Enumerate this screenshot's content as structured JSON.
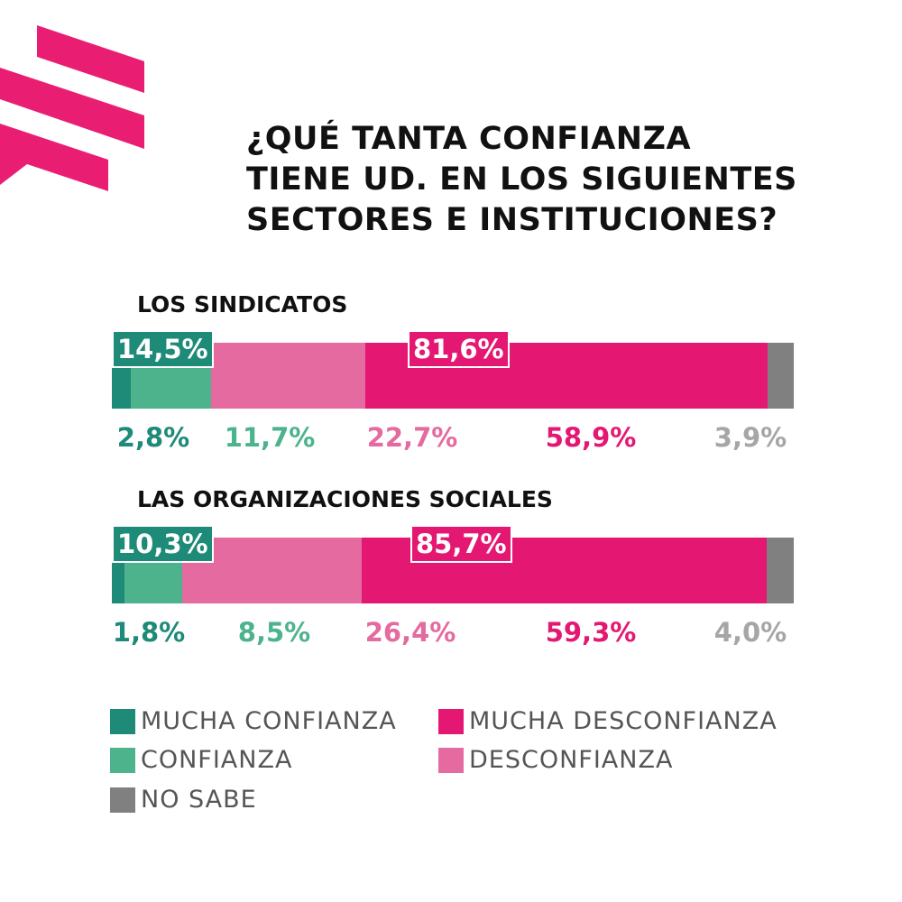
{
  "title_lines": [
    "¿QUÉ TANTA CONFIANZA",
    "TIENE UD. EN LOS SIGUIENTES",
    "SECTORES E INSTITUCIONES?"
  ],
  "colors": {
    "mucha_confianza": "#1e8a78",
    "confianza": "#4db38c",
    "desconfianza": "#e46aa0",
    "mucha_desconfianza": "#e41872",
    "no_sabe": "#808080",
    "brand": "#e91e72"
  },
  "chart_data": {
    "type": "bar",
    "orientation": "horizontal",
    "stacked": true,
    "title": "¿QUÉ TANTA CONFIANZA TIENE UD. EN LOS SIGUIENTES SECTORES E INSTITUCIONES?",
    "categories": [
      "LOS SINDICATOS",
      "LAS ORGANIZACIONES SOCIALES"
    ],
    "series": [
      {
        "name": "MUCHA CONFIANZA",
        "key": "mucha_confianza",
        "values": [
          2.8,
          1.8
        ],
        "labels": [
          "2,8%",
          "1,8%"
        ]
      },
      {
        "name": "CONFIANZA",
        "key": "confianza",
        "values": [
          11.7,
          8.5
        ],
        "labels": [
          "11,7%",
          "8,5%"
        ]
      },
      {
        "name": "DESCONFIANZA",
        "key": "desconfianza",
        "values": [
          22.7,
          26.4
        ],
        "labels": [
          "22,7%",
          "26,4%"
        ]
      },
      {
        "name": "MUCHA DESCONFIANZA",
        "key": "mucha_desconfianza",
        "values": [
          58.9,
          59.3
        ],
        "labels": [
          "58,9%",
          "59,3%"
        ]
      },
      {
        "name": "NO SABE",
        "key": "no_sabe",
        "values": [
          3.9,
          4.0
        ],
        "labels": [
          "3,9%",
          "4,0%"
        ]
      }
    ],
    "totals": {
      "confianza_total": {
        "values": [
          14.5,
          10.3
        ],
        "labels": [
          "14,5%",
          "10,3%"
        ]
      },
      "desconfianza_total": {
        "values": [
          81.6,
          85.7
        ],
        "labels": [
          "81,6%",
          "85,7%"
        ]
      }
    },
    "xlim": [
      0,
      100
    ],
    "unit": "%",
    "legend": {
      "placement": "bottom-left",
      "entries": [
        "MUCHA CONFIANZA",
        "MUCHA DESCONFIANZA",
        "CONFIANZA",
        "DESCONFIANZA",
        "NO SABE"
      ]
    }
  }
}
